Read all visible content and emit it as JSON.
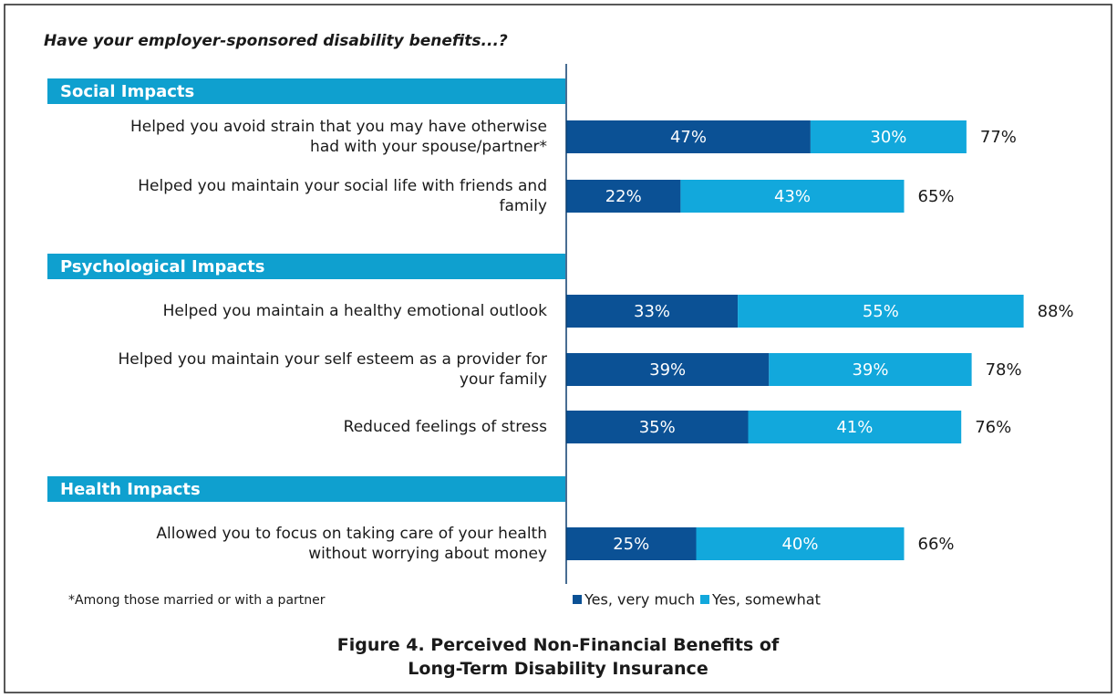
{
  "chart_data": {
    "type": "stacked_bar_horizontal",
    "question": "Have your employer-sponsored disability benefits...?",
    "groups": [
      {
        "name": "Social Impacts",
        "categories": [
          "Helped you avoid strain that you may have otherwise had with your spouse/partner*",
          "Helped you maintain your social life with friends and family"
        ]
      },
      {
        "name": "Psychological Impacts",
        "categories": [
          "Helped you maintain a healthy emotional outlook",
          "Helped you maintain your self esteem as a provider for your family",
          "Reduced feelings of stress"
        ]
      },
      {
        "name": "Health Impacts",
        "categories": [
          "Allowed you to focus on taking care of your health without worrying about money"
        ]
      }
    ],
    "series": [
      {
        "name": "Yes, very much",
        "color": "#0b5195",
        "values": [
          47,
          22,
          33,
          39,
          35,
          25
        ],
        "value_labels": [
          "47%",
          "22%",
          "33%",
          "39%",
          "35%",
          "25%"
        ]
      },
      {
        "name": "Yes, somewhat",
        "color": "#12a8dc",
        "values": [
          30,
          43,
          55,
          39,
          41,
          40
        ],
        "value_labels": [
          "30%",
          "43%",
          "55%",
          "39%",
          "41%",
          "40%"
        ]
      }
    ],
    "totals": [
      77,
      65,
      88,
      78,
      76,
      66
    ],
    "total_labels": [
      "77%",
      "65%",
      "88%",
      "78%",
      "76%",
      "66%"
    ],
    "xlim": [
      0,
      100
    ],
    "header_color": "#0fa0cf",
    "footnote": "*Among those married or with a partner",
    "caption": "Figure 4. Perceived Non-Financial Benefits of Long-Term Disability Insurance"
  }
}
